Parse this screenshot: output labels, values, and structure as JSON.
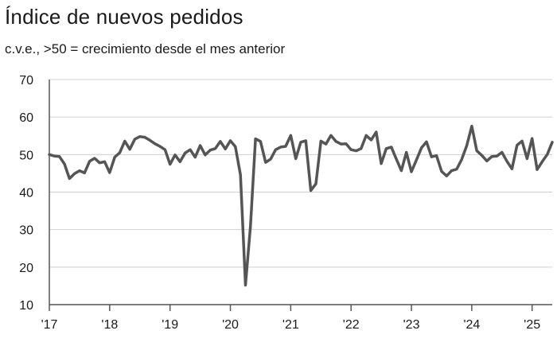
{
  "chart_data": {
    "type": "line",
    "title": "Índice de nuevos pedidos",
    "subtitle": "c.v.e., >50 = crecimiento desde el mes anterior",
    "xlabel": "",
    "ylabel": "",
    "ylim": [
      10,
      70
    ],
    "yticks": [
      10,
      20,
      30,
      40,
      50,
      60,
      70
    ],
    "xlim": [
      "2017-01",
      "2025-05"
    ],
    "xticks": [
      {
        "label": "'17",
        "date": "2017-01"
      },
      {
        "label": "'18",
        "date": "2018-01"
      },
      {
        "label": "'19",
        "date": "2019-01"
      },
      {
        "label": "'20",
        "date": "2020-01"
      },
      {
        "label": "'21",
        "date": "2021-01"
      },
      {
        "label": "'22",
        "date": "2022-01"
      },
      {
        "label": "'23",
        "date": "2023-01"
      },
      {
        "label": "'24",
        "date": "2024-01"
      },
      {
        "label": "'25",
        "date": "2025-01"
      }
    ],
    "grid": true,
    "legend": "none",
    "line_color": "#555555",
    "series": [
      {
        "x": [
          "2017-01",
          "2017-02",
          "2017-03",
          "2017-04",
          "2017-05",
          "2017-06",
          "2017-07",
          "2017-08",
          "2017-09",
          "2017-10",
          "2017-11",
          "2017-12",
          "2018-01",
          "2018-02",
          "2018-03",
          "2018-04",
          "2018-05",
          "2018-06",
          "2018-07",
          "2018-08",
          "2018-09",
          "2018-10",
          "2018-11",
          "2018-12",
          "2019-01",
          "2019-02",
          "2019-03",
          "2019-04",
          "2019-05",
          "2019-06",
          "2019-07",
          "2019-08",
          "2019-09",
          "2019-10",
          "2019-11",
          "2019-12",
          "2020-01",
          "2020-02",
          "2020-03",
          "2020-04",
          "2020-05",
          "2020-06",
          "2020-07",
          "2020-08",
          "2020-09",
          "2020-10",
          "2020-11",
          "2020-12",
          "2021-01",
          "2021-02",
          "2021-03",
          "2021-04",
          "2021-05",
          "2021-06",
          "2021-07",
          "2021-08",
          "2021-09",
          "2021-10",
          "2021-11",
          "2021-12",
          "2022-01",
          "2022-02",
          "2022-03",
          "2022-04",
          "2022-05",
          "2022-06",
          "2022-07",
          "2022-08",
          "2022-09",
          "2022-10",
          "2022-11",
          "2022-12",
          "2023-01",
          "2023-02",
          "2023-03",
          "2023-04",
          "2023-05",
          "2023-06",
          "2023-07",
          "2023-08",
          "2023-09",
          "2023-10",
          "2023-11",
          "2023-12",
          "2024-01",
          "2024-02",
          "2024-03",
          "2024-04",
          "2024-05",
          "2024-06",
          "2024-07",
          "2024-08",
          "2024-09",
          "2024-10",
          "2024-11",
          "2024-12",
          "2025-01",
          "2025-02",
          "2025-03",
          "2025-04",
          "2025-05"
        ],
        "values": [
          50.0,
          49.6,
          49.5,
          47.5,
          43.6,
          44.9,
          45.7,
          45.1,
          48.2,
          49.0,
          47.8,
          48.1,
          45.2,
          49.3,
          50.5,
          53.6,
          51.4,
          54.1,
          54.8,
          54.6,
          53.8,
          52.9,
          52.2,
          51.3,
          47.4,
          49.9,
          48.1,
          50.4,
          51.3,
          49.3,
          52.4,
          49.9,
          51.2,
          51.6,
          53.5,
          51.5,
          53.7,
          52.1,
          44.6,
          15.2,
          31.0,
          54.2,
          53.5,
          47.9,
          48.8,
          51.3,
          52.0,
          52.2,
          55.1,
          48.9,
          53.3,
          53.7,
          40.4,
          42.2,
          53.6,
          52.8,
          55.1,
          53.5,
          52.8,
          52.9,
          51.3,
          51.0,
          51.6,
          55.1,
          53.9,
          56.0,
          47.6,
          51.6,
          52.0,
          48.8,
          45.7,
          50.6,
          45.4,
          48.6,
          51.8,
          53.4,
          49.4,
          49.7,
          45.5,
          44.3,
          45.7,
          46.1,
          48.7,
          52.4,
          57.6,
          51.0,
          49.8,
          48.3,
          49.5,
          49.6,
          50.6,
          48.2,
          46.2,
          52.5,
          53.6,
          48.9,
          54.3,
          46.0,
          48.1,
          50.0,
          53.3
        ]
      }
    ]
  }
}
